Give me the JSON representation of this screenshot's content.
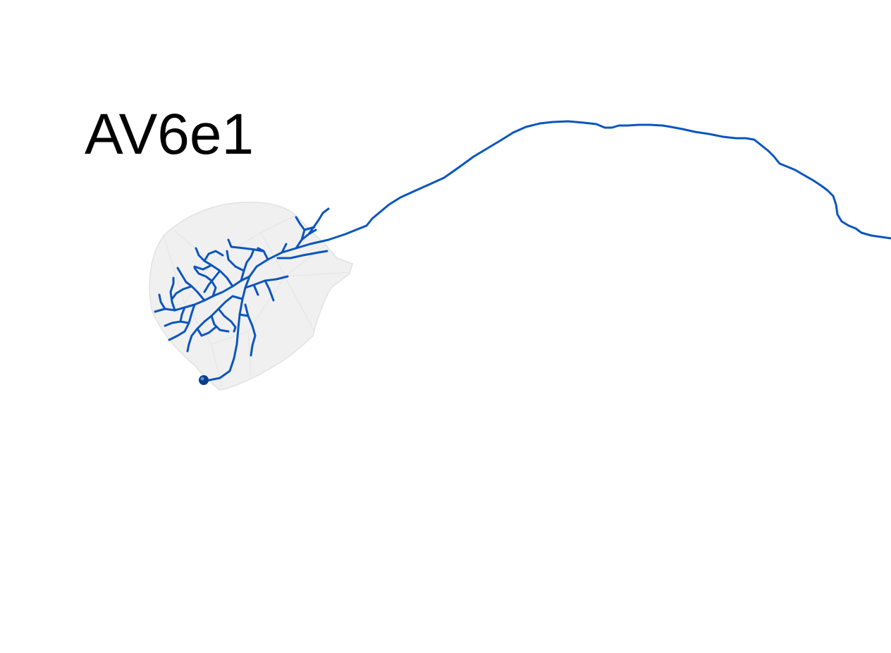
{
  "title": "AV6e1",
  "colors": {
    "neuron": "#0a55bf",
    "neuropil_fill": "#eeeeee",
    "neuropil_edge": "#e0e0e0",
    "soma": "#0b3f86",
    "background": "#ffffff"
  }
}
